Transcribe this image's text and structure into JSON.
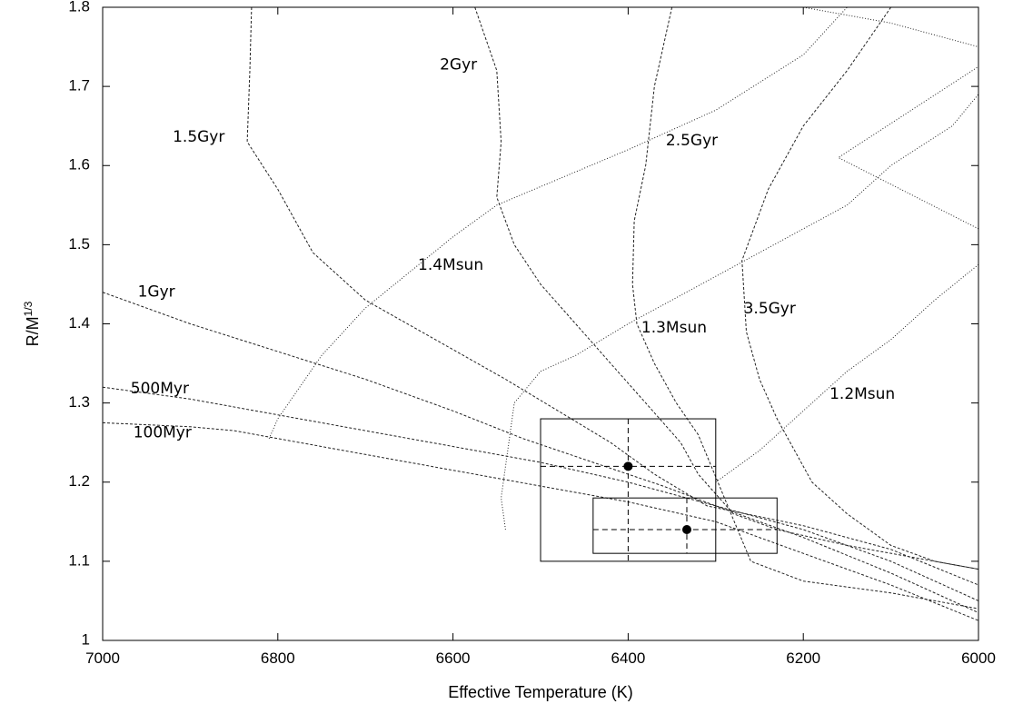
{
  "chart_data": {
    "type": "line",
    "xlabel": "Effective Temperature (K)",
    "ylabel_base": "R/M",
    "ylabel_sup": "1/3",
    "xlim": [
      7000,
      6000
    ],
    "ylim": [
      1.0,
      1.8
    ],
    "x_reversed": true,
    "x_ticks": [
      7000,
      6800,
      6600,
      6400,
      6200,
      6000
    ],
    "x_tick_labels": [
      "7000",
      "6800",
      "6600",
      "6400",
      "6200",
      "6000"
    ],
    "y_ticks": [
      1.0,
      1.1,
      1.2,
      1.3,
      1.4,
      1.5,
      1.6,
      1.7,
      1.8
    ],
    "y_tick_labels": [
      "1",
      "1.1",
      "1.2",
      "1.3",
      "1.4",
      "1.5",
      "1.6",
      "1.7",
      "1.8"
    ],
    "grid": false,
    "isochrones": [
      {
        "name": "100Myr",
        "points": [
          [
            7000,
            1.275
          ],
          [
            6900,
            1.27
          ],
          [
            6850,
            1.265
          ],
          [
            6800,
            1.255
          ],
          [
            6700,
            1.235
          ],
          [
            6600,
            1.215
          ],
          [
            6500,
            1.195
          ],
          [
            6400,
            1.175
          ],
          [
            6300,
            1.15
          ],
          [
            6200,
            1.11
          ],
          [
            6100,
            1.07
          ],
          [
            6000,
            1.025
          ]
        ]
      },
      {
        "name": "500Myr",
        "points": [
          [
            7000,
            1.32
          ],
          [
            6900,
            1.305
          ],
          [
            6800,
            1.285
          ],
          [
            6700,
            1.265
          ],
          [
            6600,
            1.245
          ],
          [
            6500,
            1.225
          ],
          [
            6400,
            1.2
          ],
          [
            6300,
            1.17
          ],
          [
            6200,
            1.13
          ],
          [
            6100,
            1.085
          ],
          [
            6000,
            1.035
          ]
        ]
      },
      {
        "name": "1Gyr",
        "points": [
          [
            7000,
            1.44
          ],
          [
            6900,
            1.4
          ],
          [
            6800,
            1.365
          ],
          [
            6700,
            1.33
          ],
          [
            6600,
            1.29
          ],
          [
            6520,
            1.255
          ],
          [
            6440,
            1.225
          ],
          [
            6360,
            1.195
          ],
          [
            6300,
            1.17
          ],
          [
            6200,
            1.14
          ],
          [
            6100,
            1.1
          ],
          [
            6000,
            1.05
          ]
        ]
      },
      {
        "name": "1.5Gyr",
        "points": [
          [
            6830,
            1.8
          ],
          [
            6832,
            1.72
          ],
          [
            6835,
            1.63
          ],
          [
            6800,
            1.57
          ],
          [
            6760,
            1.49
          ],
          [
            6700,
            1.43
          ],
          [
            6620,
            1.38
          ],
          [
            6540,
            1.33
          ],
          [
            6480,
            1.29
          ],
          [
            6420,
            1.25
          ],
          [
            6370,
            1.21
          ],
          [
            6310,
            1.17
          ],
          [
            6200,
            1.145
          ],
          [
            6100,
            1.115
          ],
          [
            6000,
            1.07
          ]
        ]
      },
      {
        "name": "2Gyr",
        "points": [
          [
            6575,
            1.8
          ],
          [
            6550,
            1.72
          ],
          [
            6545,
            1.63
          ],
          [
            6550,
            1.56
          ],
          [
            6530,
            1.5
          ],
          [
            6500,
            1.45
          ],
          [
            6460,
            1.4
          ],
          [
            6420,
            1.35
          ],
          [
            6380,
            1.3
          ],
          [
            6340,
            1.25
          ],
          [
            6320,
            1.21
          ],
          [
            6280,
            1.16
          ],
          [
            6230,
            1.14
          ],
          [
            6150,
            1.12
          ],
          [
            6050,
            1.1
          ],
          [
            6000,
            1.09
          ]
        ]
      },
      {
        "name": "2.5Gyr",
        "points": [
          [
            6350,
            1.8
          ],
          [
            6370,
            1.7
          ],
          [
            6380,
            1.6
          ],
          [
            6393,
            1.53
          ],
          [
            6395,
            1.45
          ],
          [
            6390,
            1.4
          ],
          [
            6370,
            1.35
          ],
          [
            6345,
            1.3
          ],
          [
            6320,
            1.26
          ],
          [
            6290,
            1.18
          ],
          [
            6260,
            1.1
          ],
          [
            6200,
            1.075
          ],
          [
            6100,
            1.06
          ],
          [
            6000,
            1.04
          ]
        ]
      },
      {
        "name": "3.5Gyr",
        "points": [
          [
            6100,
            1.8
          ],
          [
            6150,
            1.72
          ],
          [
            6200,
            1.65
          ],
          [
            6240,
            1.57
          ],
          [
            6270,
            1.48
          ],
          [
            6265,
            1.39
          ],
          [
            6250,
            1.33
          ],
          [
            6230,
            1.28
          ],
          [
            6190,
            1.2
          ],
          [
            6150,
            1.16
          ],
          [
            6100,
            1.12
          ],
          [
            6050,
            1.1
          ],
          [
            6000,
            1.09
          ]
        ]
      }
    ],
    "tracks": [
      {
        "name": "1.4Msun",
        "points": [
          [
            6810,
            1.255
          ],
          [
            6800,
            1.28
          ],
          [
            6750,
            1.36
          ],
          [
            6700,
            1.42
          ],
          [
            6650,
            1.465
          ],
          [
            6600,
            1.51
          ],
          [
            6550,
            1.55
          ],
          [
            6400,
            1.62
          ],
          [
            6300,
            1.67
          ],
          [
            6200,
            1.74
          ],
          [
            6150,
            1.8
          ]
        ]
      },
      {
        "name": "1.3Msun",
        "points": [
          [
            6540,
            1.14
          ],
          [
            6545,
            1.18
          ],
          [
            6530,
            1.3
          ],
          [
            6500,
            1.34
          ],
          [
            6460,
            1.36
          ],
          [
            6400,
            1.4
          ],
          [
            6300,
            1.46
          ],
          [
            6200,
            1.52
          ],
          [
            6150,
            1.55
          ],
          [
            6100,
            1.6
          ],
          [
            6030,
            1.65
          ],
          [
            6000,
            1.69
          ]
        ]
      },
      {
        "name": "1.2Msun",
        "points": [
          [
            6300,
            1.2
          ],
          [
            6250,
            1.24
          ],
          [
            6200,
            1.29
          ],
          [
            6150,
            1.34
          ],
          [
            6100,
            1.38
          ],
          [
            6050,
            1.43
          ],
          [
            6000,
            1.475
          ]
        ]
      },
      {
        "name": "",
        "points": [
          [
            6200,
            1.8
          ],
          [
            6100,
            1.78
          ],
          [
            6000,
            1.75
          ]
        ]
      },
      {
        "name": "",
        "points": [
          [
            6000,
            1.52
          ],
          [
            6160,
            1.61
          ],
          [
            6000,
            1.725
          ]
        ]
      }
    ],
    "stars": [
      {
        "teff": 6400,
        "r": 1.22,
        "teff_range": [
          6500,
          6300
        ],
        "r_range": [
          1.1,
          1.28
        ]
      },
      {
        "teff": 6333,
        "r": 1.14,
        "teff_range": [
          6440,
          6230
        ],
        "r_range": [
          1.11,
          1.18
        ]
      }
    ],
    "labels": [
      {
        "text": "100Myr",
        "x": 6965,
        "y": 1.262
      },
      {
        "text": "500Myr",
        "x": 6968,
        "y": 1.318
      },
      {
        "text": "1Gyr",
        "x": 6960,
        "y": 1.44
      },
      {
        "text": "1.5Gyr",
        "x": 6920,
        "y": 1.636
      },
      {
        "text": "2Gyr",
        "x": 6615,
        "y": 1.727
      },
      {
        "text": "2.5Gyr",
        "x": 6357,
        "y": 1.631
      },
      {
        "text": "3.5Gyr",
        "x": 6268,
        "y": 1.419
      },
      {
        "text": "1.4Msun",
        "x": 6640,
        "y": 1.474
      },
      {
        "text": "1.3Msun",
        "x": 6385,
        "y": 1.395
      },
      {
        "text": "1.2Msun",
        "x": 6170,
        "y": 1.311
      }
    ]
  }
}
